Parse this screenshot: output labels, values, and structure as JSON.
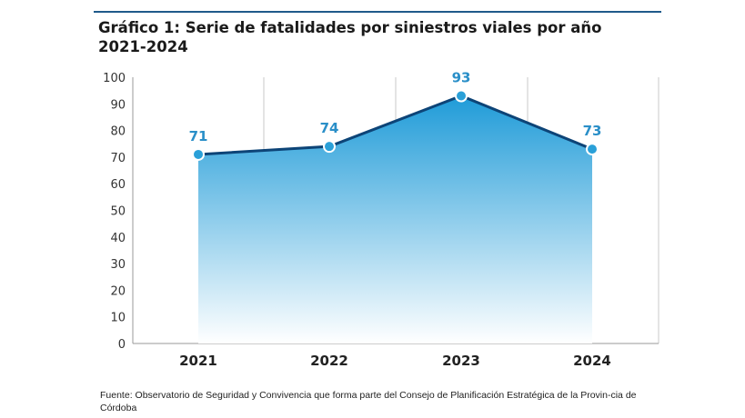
{
  "chart_data": {
    "type": "area",
    "title": "Gráfico 1: Serie de fatalidades por siniestros viales por año 2021-2024",
    "categories": [
      "2021",
      "2022",
      "2023",
      "2024"
    ],
    "series": [
      {
        "values": [
          71,
          74,
          93,
          73
        ]
      }
    ],
    "data_labels": [
      "71",
      "74",
      "93",
      "73"
    ],
    "ylim": [
      0,
      100
    ],
    "yticks": [
      "0",
      "10",
      "20",
      "30",
      "40",
      "50",
      "60",
      "70",
      "80",
      "90",
      "100"
    ],
    "xlabel": "",
    "ylabel": "",
    "grid": "vertical",
    "colors": {
      "line": "#0d4477",
      "marker": "#2aa0d8",
      "label": "#2a8fc8",
      "fill_top": "#1f9bd8",
      "fill_bottom": "#ffffff",
      "axis": "#999999"
    }
  },
  "source_text": "Fuente: Observatorio de Seguridad y Convivencia que forma parte del Consejo de Planificación Estratégica de la Provin-cia de Córdoba"
}
